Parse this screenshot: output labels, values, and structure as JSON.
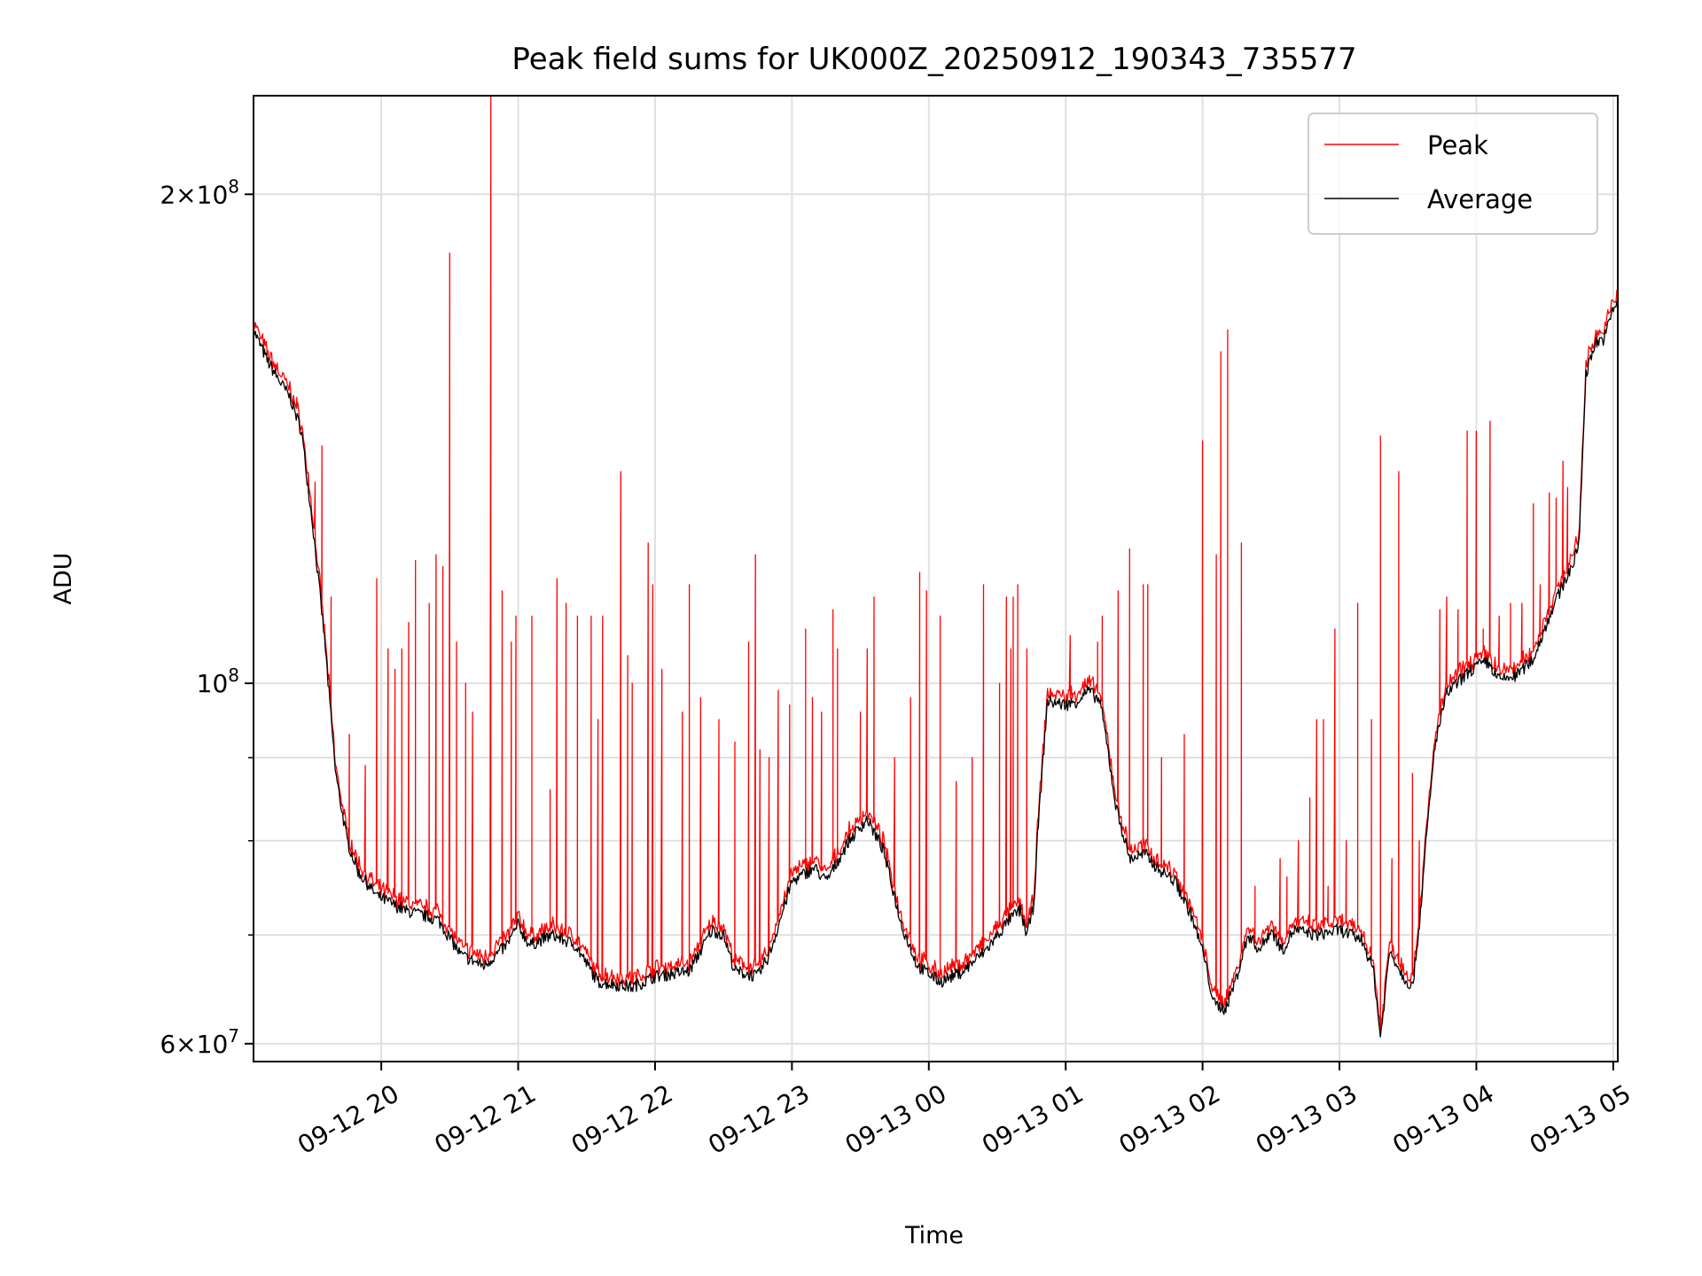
{
  "chart_data": {
    "type": "line",
    "title": "Peak field sums for UK000Z_20250912_190343_735577",
    "xlabel": "Time",
    "ylabel": "ADU",
    "y_scale": "log",
    "ylim": [
      58500000,
      230000000
    ],
    "xlim": [
      "2025-09-12 19:04",
      "2025-09-13 05:02"
    ],
    "x_ticks": [
      {
        "t": "2025-09-12 20:00",
        "label": "09-12 20"
      },
      {
        "t": "2025-09-12 21:00",
        "label": "09-12 21"
      },
      {
        "t": "2025-09-12 22:00",
        "label": "09-12 22"
      },
      {
        "t": "2025-09-12 23:00",
        "label": "09-12 23"
      },
      {
        "t": "2025-09-13 00:00",
        "label": "09-13 00"
      },
      {
        "t": "2025-09-13 01:00",
        "label": "09-13 01"
      },
      {
        "t": "2025-09-13 02:00",
        "label": "09-13 02"
      },
      {
        "t": "2025-09-13 03:00",
        "label": "09-13 03"
      },
      {
        "t": "2025-09-13 04:00",
        "label": "09-13 04"
      },
      {
        "t": "2025-09-13 05:00",
        "label": "09-13 05"
      }
    ],
    "y_ticks": [
      {
        "value": 200000000,
        "mant": "2",
        "exp": "8"
      },
      {
        "value": 100000000,
        "mant": "",
        "exp": "8"
      },
      {
        "value": 60000000,
        "mant": "6",
        "exp": "7"
      }
    ],
    "y_minor_ticks": [
      70000000,
      80000000,
      90000000
    ],
    "grid": true,
    "legend_position": "upper right",
    "series": [
      {
        "name": "Average",
        "color": "#000000",
        "points": [
          [
            "2025-09-12 19:04",
            165000000
          ],
          [
            "2025-09-12 19:10",
            158000000
          ],
          [
            "2025-09-12 19:16",
            153000000
          ],
          [
            "2025-09-12 19:20",
            150000000
          ],
          [
            "2025-09-12 19:25",
            143000000
          ],
          [
            "2025-09-12 19:30",
            125000000
          ],
          [
            "2025-09-12 19:35",
            107000000
          ],
          [
            "2025-09-12 19:40",
            88000000
          ],
          [
            "2025-09-12 19:45",
            80000000
          ],
          [
            "2025-09-12 19:50",
            76500000
          ],
          [
            "2025-09-12 19:58",
            74000000
          ],
          [
            "2025-09-12 20:10",
            72500000
          ],
          [
            "2025-09-12 20:25",
            71500000
          ],
          [
            "2025-09-12 20:35",
            68000000
          ],
          [
            "2025-09-12 20:45",
            67000000
          ],
          [
            "2025-09-12 20:55",
            69000000
          ],
          [
            "2025-09-12 21:00",
            71000000
          ],
          [
            "2025-09-12 21:05",
            69000000
          ],
          [
            "2025-09-12 21:15",
            70000000
          ],
          [
            "2025-09-12 21:25",
            69000000
          ],
          [
            "2025-09-12 21:35",
            65500000
          ],
          [
            "2025-09-12 21:50",
            65000000
          ],
          [
            "2025-09-12 22:00",
            66000000
          ],
          [
            "2025-09-12 22:15",
            66500000
          ],
          [
            "2025-09-12 22:25",
            70500000
          ],
          [
            "2025-09-12 22:30",
            70000000
          ],
          [
            "2025-09-12 22:35",
            66500000
          ],
          [
            "2025-09-12 22:45",
            66000000
          ],
          [
            "2025-09-12 22:50",
            68000000
          ],
          [
            "2025-09-12 23:00",
            75500000
          ],
          [
            "2025-09-12 23:10",
            77000000
          ],
          [
            "2025-09-12 23:15",
            75500000
          ],
          [
            "2025-09-12 23:25",
            80000000
          ],
          [
            "2025-09-12 23:33",
            82500000
          ],
          [
            "2025-09-12 23:40",
            79000000
          ],
          [
            "2025-09-12 23:48",
            71000000
          ],
          [
            "2025-09-12 23:55",
            67000000
          ],
          [
            "2025-09-13 00:05",
            65500000
          ],
          [
            "2025-09-13 00:15",
            66500000
          ],
          [
            "2025-09-13 00:25",
            68500000
          ],
          [
            "2025-09-13 00:32",
            70500000
          ],
          [
            "2025-09-13 00:35",
            71500000
          ],
          [
            "2025-09-13 00:40",
            72500000
          ],
          [
            "2025-09-13 00:43",
            70000000
          ],
          [
            "2025-09-13 00:46",
            73000000
          ],
          [
            "2025-09-13 00:48",
            82000000
          ],
          [
            "2025-09-13 00:52",
            97500000
          ],
          [
            "2025-09-13 01:00",
            97000000
          ],
          [
            "2025-09-13 01:05",
            97500000
          ],
          [
            "2025-09-13 01:10",
            99000000
          ],
          [
            "2025-09-13 01:15",
            97500000
          ],
          [
            "2025-09-13 01:18",
            92000000
          ],
          [
            "2025-09-13 01:22",
            84000000
          ],
          [
            "2025-09-13 01:28",
            78000000
          ],
          [
            "2025-09-13 01:35",
            78500000
          ],
          [
            "2025-09-13 01:40",
            77000000
          ],
          [
            "2025-09-13 01:48",
            75500000
          ],
          [
            "2025-09-13 01:55",
            72000000
          ],
          [
            "2025-09-13 02:00",
            68500000
          ],
          [
            "2025-09-13 02:05",
            63500000
          ],
          [
            "2025-09-13 02:10",
            63000000
          ],
          [
            "2025-09-13 02:15",
            66000000
          ],
          [
            "2025-09-13 02:20",
            70000000
          ],
          [
            "2025-09-13 02:25",
            68500000
          ],
          [
            "2025-09-13 02:30",
            70500000
          ],
          [
            "2025-09-13 02:35",
            68500000
          ],
          [
            "2025-09-13 02:40",
            70500000
          ],
          [
            "2025-09-13 02:50",
            70000000
          ],
          [
            "2025-09-13 03:00",
            70500000
          ],
          [
            "2025-09-13 03:10",
            69500000
          ],
          [
            "2025-09-13 03:15",
            66500000
          ],
          [
            "2025-09-13 03:18",
            60500000
          ],
          [
            "2025-09-13 03:22",
            68500000
          ],
          [
            "2025-09-13 03:28",
            66000000
          ],
          [
            "2025-09-13 03:32",
            65000000
          ],
          [
            "2025-09-13 03:35",
            71000000
          ],
          [
            "2025-09-13 03:38",
            80000000
          ],
          [
            "2025-09-13 03:42",
            92000000
          ],
          [
            "2025-09-13 03:47",
            98500000
          ],
          [
            "2025-09-13 03:53",
            100500000
          ],
          [
            "2025-09-13 04:00",
            102500000
          ],
          [
            "2025-09-13 04:05",
            103000000
          ],
          [
            "2025-09-13 04:10",
            100500000
          ],
          [
            "2025-09-13 04:17",
            101000000
          ],
          [
            "2025-09-13 04:25",
            103500000
          ],
          [
            "2025-09-13 04:32",
            110000000
          ],
          [
            "2025-09-13 04:38",
            115000000
          ],
          [
            "2025-09-13 04:43",
            119000000
          ],
          [
            "2025-09-13 04:45",
            122000000
          ],
          [
            "2025-09-13 04:48",
            155000000
          ],
          [
            "2025-09-13 04:52",
            162000000
          ],
          [
            "2025-09-13 04:56",
            163000000
          ],
          [
            "2025-09-13 05:00",
            170000000
          ],
          [
            "2025-09-13 05:02",
            172000000
          ]
        ]
      },
      {
        "name": "Peak",
        "color": "#ff0000",
        "spikes": [
          [
            "2025-09-12 19:23",
            150000000
          ],
          [
            "2025-09-12 19:28",
            131000000
          ],
          [
            "2025-09-12 19:31",
            133000000
          ],
          [
            "2025-09-12 19:34",
            140000000
          ],
          [
            "2025-09-12 19:38",
            113000000
          ],
          [
            "2025-09-12 19:46",
            93000000
          ],
          [
            "2025-09-12 19:53",
            89000000
          ],
          [
            "2025-09-12 19:58",
            116000000
          ],
          [
            "2025-09-12 20:03",
            105000000
          ],
          [
            "2025-09-12 20:06",
            102000000
          ],
          [
            "2025-09-12 20:09",
            105000000
          ],
          [
            "2025-09-12 20:12",
            109000000
          ],
          [
            "2025-09-12 20:15",
            119000000
          ],
          [
            "2025-09-12 20:21",
            112000000
          ],
          [
            "2025-09-12 20:24",
            120000000
          ],
          [
            "2025-09-12 20:27",
            118000000
          ],
          [
            "2025-09-12 20:30",
            184000000
          ],
          [
            "2025-09-12 20:33",
            106000000
          ],
          [
            "2025-09-12 20:37",
            100000000
          ],
          [
            "2025-09-12 20:40",
            96000000
          ],
          [
            "2025-09-12 20:48",
            230000000
          ],
          [
            "2025-09-12 20:53",
            114000000
          ],
          [
            "2025-09-12 20:57",
            106000000
          ],
          [
            "2025-09-12 20:59",
            110000000
          ],
          [
            "2025-09-12 21:06",
            110000000
          ],
          [
            "2025-09-12 21:14",
            86000000
          ],
          [
            "2025-09-12 21:17",
            116000000
          ],
          [
            "2025-09-12 21:21",
            112000000
          ],
          [
            "2025-09-12 21:26",
            110000000
          ],
          [
            "2025-09-12 21:32",
            110000000
          ],
          [
            "2025-09-12 21:35",
            95000000
          ],
          [
            "2025-09-12 21:37",
            110000000
          ],
          [
            "2025-09-12 21:45",
            135000000
          ],
          [
            "2025-09-12 21:48",
            104000000
          ],
          [
            "2025-09-12 21:50",
            100000000
          ],
          [
            "2025-09-12 21:57",
            122000000
          ],
          [
            "2025-09-12 21:59",
            115000000
          ],
          [
            "2025-09-12 22:03",
            102000000
          ],
          [
            "2025-09-12 22:12",
            96000000
          ],
          [
            "2025-09-12 22:15",
            115000000
          ],
          [
            "2025-09-12 22:20",
            98000000
          ],
          [
            "2025-09-12 22:28",
            95000000
          ],
          [
            "2025-09-12 22:35",
            92000000
          ],
          [
            "2025-09-12 22:41",
            106000000
          ],
          [
            "2025-09-12 22:44",
            120000000
          ],
          [
            "2025-09-12 22:46",
            91000000
          ],
          [
            "2025-09-12 22:50",
            90000000
          ],
          [
            "2025-09-12 22:54",
            99000000
          ],
          [
            "2025-09-12 22:59",
            97000000
          ],
          [
            "2025-09-12 23:06",
            108000000
          ],
          [
            "2025-09-12 23:09",
            98000000
          ],
          [
            "2025-09-12 23:13",
            96000000
          ],
          [
            "2025-09-12 23:18",
            111000000
          ],
          [
            "2025-09-12 23:20",
            105000000
          ],
          [
            "2025-09-12 23:30",
            96000000
          ],
          [
            "2025-09-12 23:33",
            105000000
          ],
          [
            "2025-09-12 23:36",
            113000000
          ],
          [
            "2025-09-12 23:45",
            90000000
          ],
          [
            "2025-09-12 23:52",
            98000000
          ],
          [
            "2025-09-12 23:56",
            117000000
          ],
          [
            "2025-09-12 23:59",
            114000000
          ],
          [
            "2025-09-13 00:05",
            110000000
          ],
          [
            "2025-09-13 00:12",
            87000000
          ],
          [
            "2025-09-13 00:19",
            90000000
          ],
          [
            "2025-09-13 00:24",
            115000000
          ],
          [
            "2025-09-13 00:31",
            100000000
          ],
          [
            "2025-09-13 00:34",
            113000000
          ],
          [
            "2025-09-13 00:36",
            105000000
          ],
          [
            "2025-09-13 00:37",
            113000000
          ],
          [
            "2025-09-13 00:39",
            115000000
          ],
          [
            "2025-09-13 00:43",
            105000000
          ],
          [
            "2025-09-13 01:02",
            107000000
          ],
          [
            "2025-09-13 01:14",
            106000000
          ],
          [
            "2025-09-13 01:16",
            110000000
          ],
          [
            "2025-09-13 01:23",
            114000000
          ],
          [
            "2025-09-13 01:28",
            121000000
          ],
          [
            "2025-09-13 01:34",
            115000000
          ],
          [
            "2025-09-13 01:36",
            115000000
          ],
          [
            "2025-09-13 01:42",
            90000000
          ],
          [
            "2025-09-13 01:52",
            93000000
          ],
          [
            "2025-09-13 02:00",
            141000000
          ],
          [
            "2025-09-13 02:06",
            120000000
          ],
          [
            "2025-09-13 02:08",
            160000000
          ],
          [
            "2025-09-13 02:11",
            165000000
          ],
          [
            "2025-09-13 02:17",
            122000000
          ],
          [
            "2025-09-13 02:23",
            75000000
          ],
          [
            "2025-09-13 02:34",
            78000000
          ],
          [
            "2025-09-13 02:37",
            76000000
          ],
          [
            "2025-09-13 02:42",
            80000000
          ],
          [
            "2025-09-13 02:47",
            85000000
          ],
          [
            "2025-09-13 02:50",
            95000000
          ],
          [
            "2025-09-13 02:53",
            95000000
          ],
          [
            "2025-09-13 02:55",
            75000000
          ],
          [
            "2025-09-13 02:58",
            108000000
          ],
          [
            "2025-09-13 03:03",
            80000000
          ],
          [
            "2025-09-13 03:08",
            112000000
          ],
          [
            "2025-09-13 03:14",
            95000000
          ],
          [
            "2025-09-13 03:18",
            142000000
          ],
          [
            "2025-09-13 03:23",
            78000000
          ],
          [
            "2025-09-13 03:26",
            135000000
          ],
          [
            "2025-09-13 03:32",
            88000000
          ],
          [
            "2025-09-13 03:35",
            80000000
          ],
          [
            "2025-09-13 03:44",
            111000000
          ],
          [
            "2025-09-13 03:47",
            113000000
          ],
          [
            "2025-09-13 03:52",
            111000000
          ],
          [
            "2025-09-13 03:56",
            143000000
          ],
          [
            "2025-09-13 04:00",
            143000000
          ],
          [
            "2025-09-13 04:03",
            108000000
          ],
          [
            "2025-09-13 04:06",
            145000000
          ],
          [
            "2025-09-13 04:10",
            110000000
          ],
          [
            "2025-09-13 04:15",
            112000000
          ],
          [
            "2025-09-13 04:20",
            112000000
          ],
          [
            "2025-09-13 04:25",
            129000000
          ],
          [
            "2025-09-13 04:28",
            115000000
          ],
          [
            "2025-09-13 04:32",
            131000000
          ],
          [
            "2025-09-13 04:35",
            130000000
          ],
          [
            "2025-09-13 04:38",
            137000000
          ],
          [
            "2025-09-13 04:40",
            132000000
          ]
        ]
      }
    ]
  }
}
